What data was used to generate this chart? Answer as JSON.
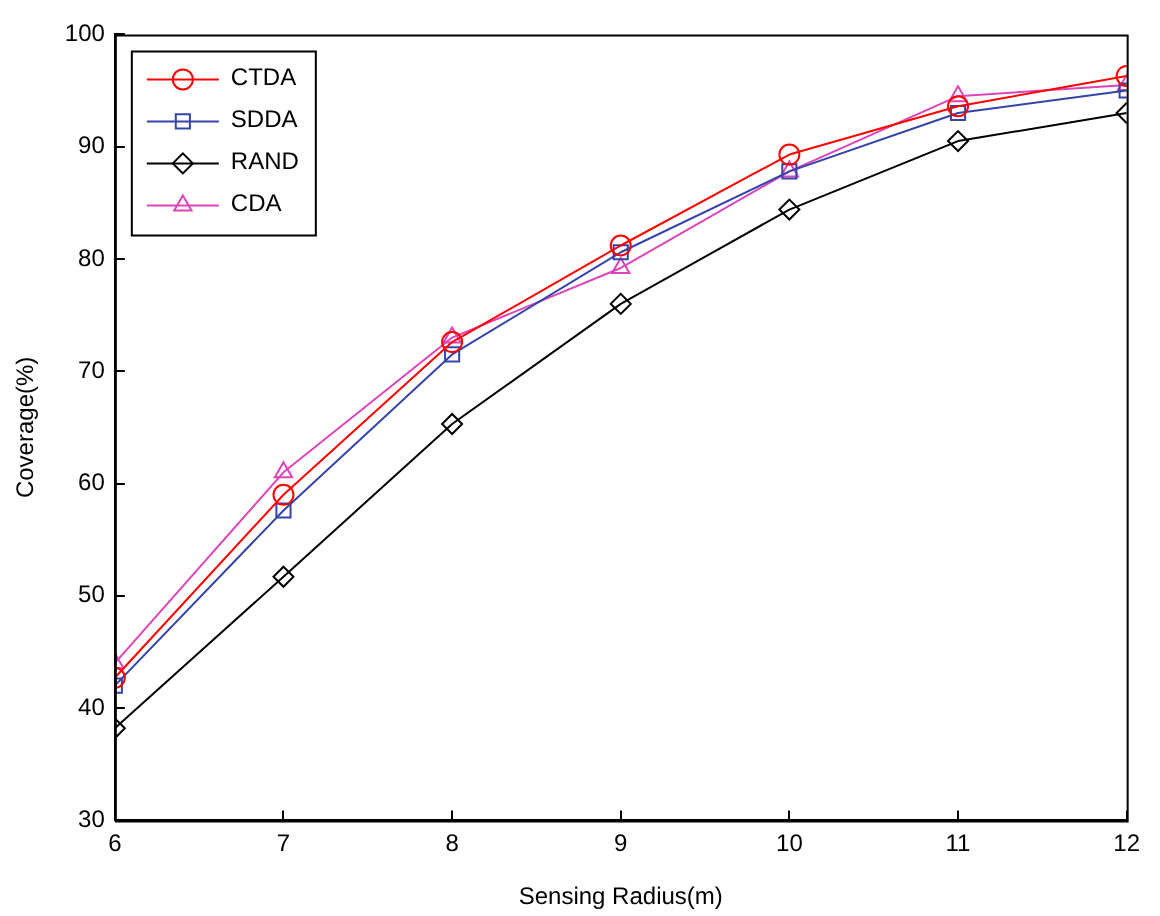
{
  "chart_data": {
    "type": "line",
    "xlabel": "Sensing Radius(m)",
    "ylabel": "Coverage(%)",
    "x": [
      6,
      7,
      8,
      9,
      10,
      11,
      12
    ],
    "xlim": [
      6,
      12
    ],
    "xticks": [
      6,
      7,
      8,
      9,
      10,
      11,
      12
    ],
    "ylim": [
      30,
      100
    ],
    "yticks": [
      30,
      40,
      50,
      60,
      70,
      80,
      90,
      100
    ],
    "grid": false,
    "legend": "top left",
    "series": [
      {
        "name": "CTDA",
        "color": "#ff0000",
        "marker": "circle",
        "values": [
          42.7,
          59.0,
          72.6,
          81.2,
          89.3,
          93.6,
          96.3
        ]
      },
      {
        "name": "SDDA",
        "color": "#3344aa",
        "marker": "square",
        "values": [
          42.0,
          57.6,
          71.5,
          80.6,
          87.8,
          93.0,
          95.0
        ]
      },
      {
        "name": "RAND",
        "color": "#000000",
        "marker": "diamond",
        "values": [
          38.2,
          51.7,
          65.3,
          76.0,
          84.4,
          90.5,
          93.0
        ]
      },
      {
        "name": "CDA",
        "color": "#dd44bb",
        "marker": "triangle",
        "values": [
          44.0,
          61.0,
          73.0,
          79.2,
          87.8,
          94.5,
          95.5
        ]
      }
    ]
  }
}
